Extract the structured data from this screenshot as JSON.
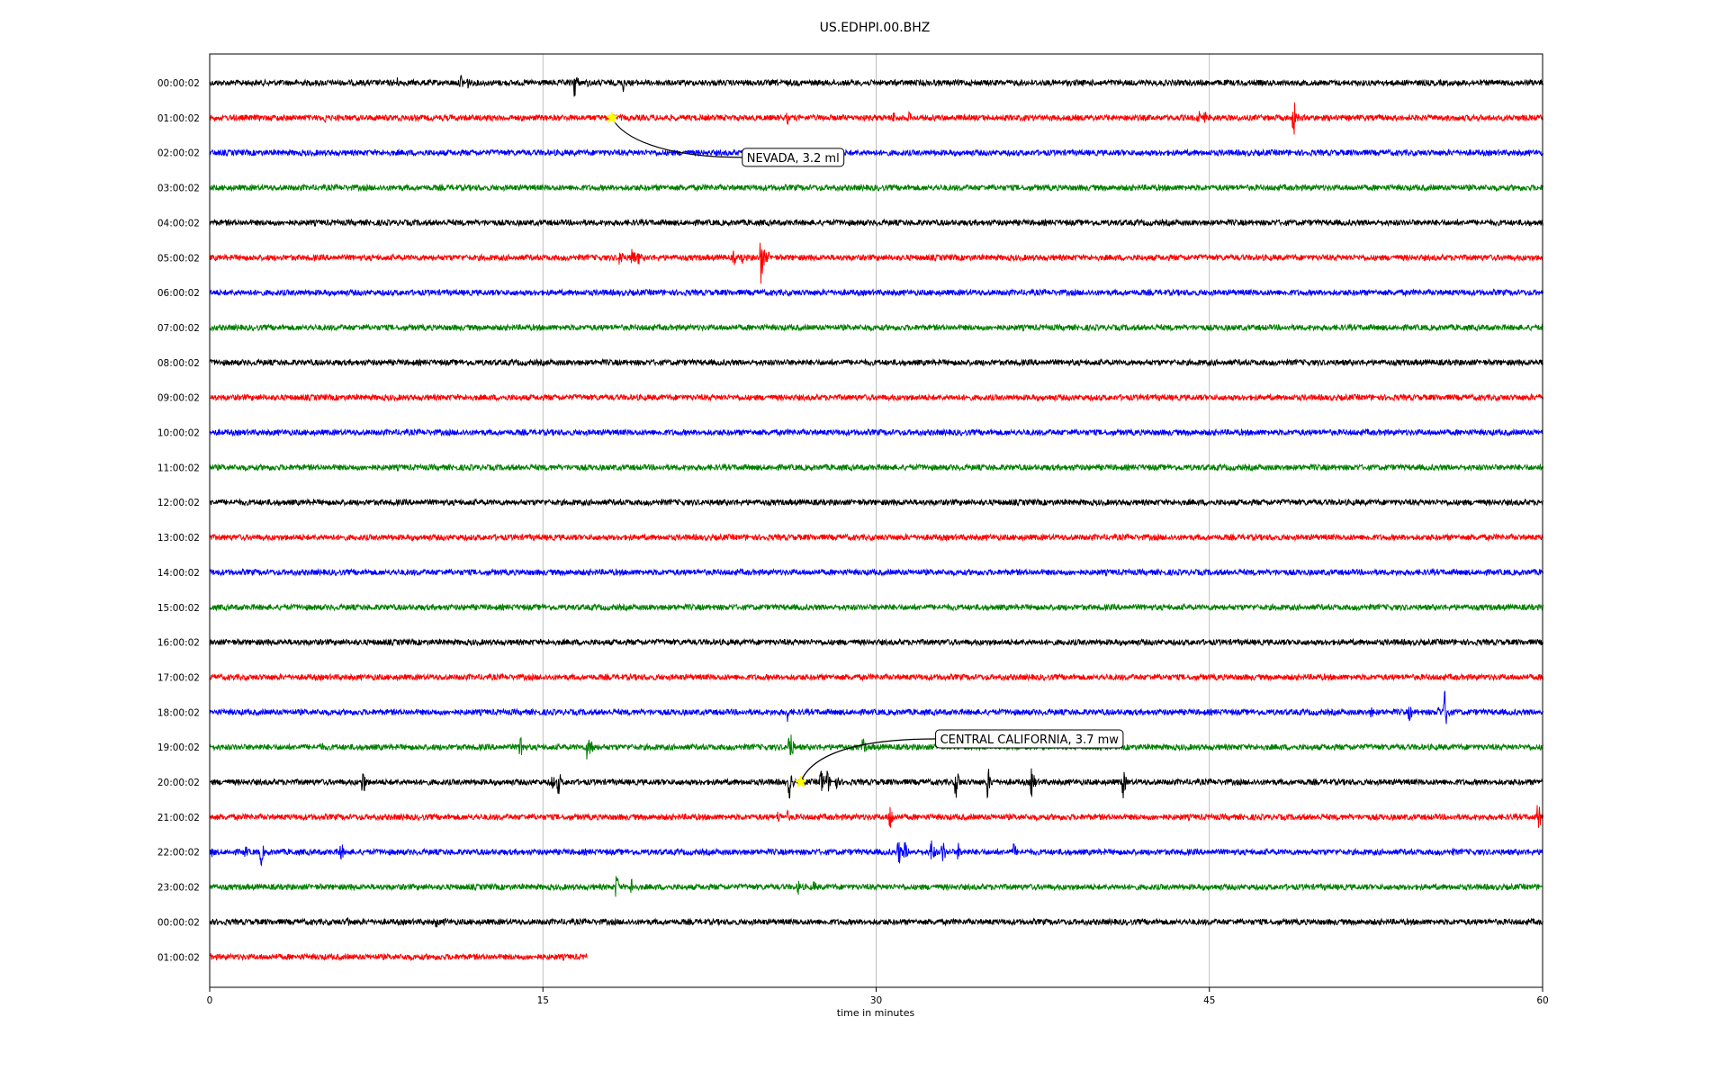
{
  "chart_data": {
    "type": "line",
    "title": "US.EDHPI.00.BHZ",
    "xlabel": "time in minutes",
    "ylabel": "",
    "xlim": [
      0,
      60
    ],
    "x_ticks": [
      0,
      15,
      30,
      45,
      60
    ],
    "x_tick_labels": [
      "0",
      "15",
      "30",
      "45",
      "60"
    ],
    "grid": "vertical",
    "trace_colors": [
      "#000000",
      "#ff0000",
      "#0000ff",
      "#008000"
    ],
    "marker_color": "#ffff00",
    "traces": [
      {
        "label": "00:00:02",
        "end": 60,
        "events": [
          {
            "t": 8.4,
            "a": 8
          },
          {
            "t": 11.3,
            "a": 12
          },
          {
            "t": 11.6,
            "a": 9
          },
          {
            "t": 16.4,
            "a": 24
          },
          {
            "t": 17.0,
            "a": 6
          },
          {
            "t": 18.6,
            "a": 12
          }
        ]
      },
      {
        "label": "01:00:02",
        "end": 60,
        "events": [
          {
            "t": 5.2,
            "a": 8
          },
          {
            "t": 8.6,
            "a": 6
          },
          {
            "t": 26.0,
            "a": 8
          },
          {
            "t": 30.8,
            "a": 10
          },
          {
            "t": 31.5,
            "a": 8
          },
          {
            "t": 44.5,
            "a": 10
          },
          {
            "t": 44.8,
            "a": 8
          },
          {
            "t": 48.8,
            "a": 22
          }
        ]
      },
      {
        "label": "02:00:02",
        "end": 60,
        "events": []
      },
      {
        "label": "03:00:02",
        "end": 60,
        "events": []
      },
      {
        "label": "04:00:02",
        "end": 60,
        "events": []
      },
      {
        "label": "05:00:02",
        "end": 60,
        "events": [
          {
            "t": 18.5,
            "a": 14
          },
          {
            "t": 19.0,
            "a": 18
          },
          {
            "t": 19.3,
            "a": 10
          },
          {
            "t": 23.6,
            "a": 10
          },
          {
            "t": 24.0,
            "a": 8
          },
          {
            "t": 24.8,
            "a": 36
          },
          {
            "t": 25.1,
            "a": 10
          }
        ]
      },
      {
        "label": "06:00:02",
        "end": 60,
        "events": []
      },
      {
        "label": "07:00:02",
        "end": 60,
        "events": [
          {
            "t": 29.5,
            "a": 5
          }
        ]
      },
      {
        "label": "08:00:02",
        "end": 60,
        "events": []
      },
      {
        "label": "09:00:02",
        "end": 60,
        "events": [
          {
            "t": 59.8,
            "a": 6
          }
        ]
      },
      {
        "label": "10:00:02",
        "end": 60,
        "events": []
      },
      {
        "label": "11:00:02",
        "end": 60,
        "events": []
      },
      {
        "label": "12:00:02",
        "end": 60,
        "events": []
      },
      {
        "label": "13:00:02",
        "end": 60,
        "events": []
      },
      {
        "label": "14:00:02",
        "end": 60,
        "events": []
      },
      {
        "label": "15:00:02",
        "end": 60,
        "events": []
      },
      {
        "label": "16:00:02",
        "end": 60,
        "events": []
      },
      {
        "label": "17:00:02",
        "end": 60,
        "events": []
      },
      {
        "label": "18:00:02",
        "end": 60,
        "events": [
          {
            "t": 26.0,
            "a": 12
          },
          {
            "t": 52.3,
            "a": 8
          },
          {
            "t": 54.0,
            "a": 12
          },
          {
            "t": 55.3,
            "a": 10
          },
          {
            "t": 55.6,
            "a": 28
          }
        ]
      },
      {
        "label": "19:00:02",
        "end": 60,
        "events": [
          {
            "t": 5.0,
            "a": 8
          },
          {
            "t": 14.0,
            "a": 20
          },
          {
            "t": 17.0,
            "a": 18
          },
          {
            "t": 17.2,
            "a": 12
          },
          {
            "t": 26.1,
            "a": 28
          },
          {
            "t": 29.4,
            "a": 14
          }
        ]
      },
      {
        "label": "20:00:02",
        "end": 60,
        "events": [
          {
            "t": 6.9,
            "a": 18
          },
          {
            "t": 15.4,
            "a": 12
          },
          {
            "t": 15.7,
            "a": 16
          },
          {
            "t": 26.1,
            "a": 20
          },
          {
            "t": 27.5,
            "a": 22
          },
          {
            "t": 27.8,
            "a": 16
          },
          {
            "t": 28.2,
            "a": 10
          },
          {
            "t": 33.6,
            "a": 22
          },
          {
            "t": 35.0,
            "a": 22
          },
          {
            "t": 37.0,
            "a": 22
          },
          {
            "t": 41.1,
            "a": 22
          }
        ]
      },
      {
        "label": "21:00:02",
        "end": 60,
        "events": [
          {
            "t": 25.6,
            "a": 10
          },
          {
            "t": 26.0,
            "a": 8
          },
          {
            "t": 30.6,
            "a": 22
          },
          {
            "t": 59.8,
            "a": 20
          }
        ]
      },
      {
        "label": "22:00:02",
        "end": 60,
        "events": [
          {
            "t": 0.1,
            "a": 8
          },
          {
            "t": 1.6,
            "a": 10
          },
          {
            "t": 2.3,
            "a": 16
          },
          {
            "t": 5.9,
            "a": 14
          },
          {
            "t": 31.0,
            "a": 18
          },
          {
            "t": 31.3,
            "a": 14
          },
          {
            "t": 32.5,
            "a": 18
          },
          {
            "t": 33.0,
            "a": 16
          },
          {
            "t": 33.7,
            "a": 12
          },
          {
            "t": 36.2,
            "a": 12
          },
          {
            "t": 56.0,
            "a": 6
          }
        ]
      },
      {
        "label": "23:00:02",
        "end": 60,
        "events": [
          {
            "t": 18.3,
            "a": 18
          },
          {
            "t": 19.0,
            "a": 14
          },
          {
            "t": 26.5,
            "a": 10
          },
          {
            "t": 27.2,
            "a": 8
          },
          {
            "t": 31.2,
            "a": 5
          }
        ]
      },
      {
        "label": "00:00:02",
        "end": 60,
        "events": [
          {
            "t": 6.2,
            "a": 8
          },
          {
            "t": 10.2,
            "a": 8
          },
          {
            "t": 10.6,
            "a": 6
          }
        ]
      },
      {
        "label": "01:00:02",
        "end": 17.0,
        "events": [
          {
            "t": 12.5,
            "a": 3
          }
        ]
      }
    ],
    "annotations": [
      {
        "text": "NEVADA, 3.2 ml",
        "trace": 1,
        "t": 18.1
      },
      {
        "text": "CENTRAL CALIFORNIA, 3.7 mw",
        "trace": 20,
        "t": 26.6
      }
    ]
  }
}
